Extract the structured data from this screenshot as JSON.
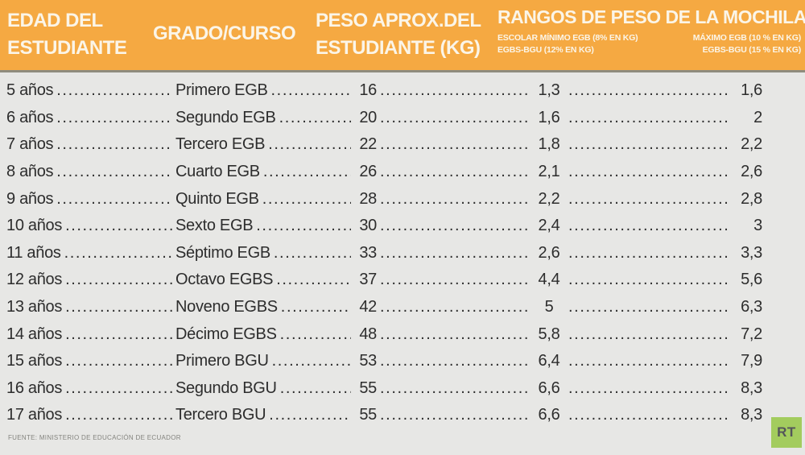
{
  "colors": {
    "header_bg": "#F5A942",
    "header_text": "#FBF5E8",
    "body_bg": "#E7E7E5",
    "row_text": "#2D2D2D",
    "header_shadow": "#8F8C7E",
    "footer_text": "#84847F",
    "logo_green": "#A3CC5E",
    "logo_text": "#54555A"
  },
  "header": {
    "col_age": {
      "line1": "EDAD DEL",
      "line2": "ESTUDIANTE"
    },
    "col_grade": {
      "label": "GRADO/CURSO"
    },
    "col_weight": {
      "line1": "PESO APROX.DEL",
      "line2": "ESTUDIANTE (KG)"
    },
    "col_range": {
      "title": "RANGOS DE PESO DE LA MOCHILA",
      "sub_min": {
        "line1": "ESCOLAR MÍNIMO EGB (8% EN KG)",
        "line2": "EGBS-BGU (12% EN KG)"
      },
      "sub_max": {
        "line1": "MÁXIMO EGB (10 % EN KG)",
        "line2": "EGBS-BGU (15 % EN KG)"
      }
    }
  },
  "rows": [
    {
      "age": "5 años",
      "grade": "Primero EGB",
      "weight": "16",
      "min": "1,3",
      "max": "1,6"
    },
    {
      "age": "6 años",
      "grade": "Segundo EGB",
      "weight": "20",
      "min": "1,6",
      "max": "2"
    },
    {
      "age": "7 años",
      "grade": "Tercero EGB",
      "weight": "22",
      "min": "1,8",
      "max": "2,2"
    },
    {
      "age": "8 años",
      "grade": "Cuarto EGB",
      "weight": "26",
      "min": "2,1",
      "max": "2,6"
    },
    {
      "age": "9 años",
      "grade": "Quinto EGB",
      "weight": "28",
      "min": "2,2",
      "max": "2,8"
    },
    {
      "age": "10 años",
      "grade": "Sexto EGB",
      "weight": "30",
      "min": "2,4",
      "max": "3"
    },
    {
      "age": "11 años",
      "grade": "Séptimo EGB",
      "weight": "33",
      "min": "2,6",
      "max": "3,3"
    },
    {
      "age": "12 años",
      "grade": "Octavo EGBS",
      "weight": "37",
      "min": "4,4",
      "max": "5,6"
    },
    {
      "age": "13 años",
      "grade": "Noveno EGBS",
      "weight": "42",
      "min": "5",
      "max": "6,3"
    },
    {
      "age": "14 años",
      "grade": "Décimo EGBS",
      "weight": "48",
      "min": "5,8",
      "max": "7,2"
    },
    {
      "age": "15 años",
      "grade": "Primero BGU",
      "weight": "53",
      "min": "6,4",
      "max": "7,9"
    },
    {
      "age": "16 años",
      "grade": "Segundo BGU",
      "weight": "55",
      "min": "6,6",
      "max": "8,3"
    },
    {
      "age": "17 años",
      "grade": "Tercero BGU",
      "weight": "55",
      "min": "6,6",
      "max": "8,3"
    }
  ],
  "footer": {
    "source": "FUENTE: MINISTERIO DE EDUCACIÓN DE ECUADOR"
  },
  "logo": {
    "text": "RT"
  },
  "chart_data": {
    "type": "table",
    "title": "RANGOS DE PESO DE LA MOCHILA",
    "columns": [
      "EDAD DEL ESTUDIANTE",
      "GRADO/CURSO",
      "PESO APROX.DEL ESTUDIANTE (KG)",
      "MOCHILA ESCOLAR MÍNIMO EGB (8% EN KG) EGBS-BGU (12% EN KG)",
      "MOCHILA MÁXIMO EGB (10 % EN KG) EGBS-BGU (15 % EN KG)"
    ],
    "rows": [
      [
        "5 años",
        "Primero EGB",
        16,
        1.3,
        1.6
      ],
      [
        "6 años",
        "Segundo EGB",
        20,
        1.6,
        2.0
      ],
      [
        "7 años",
        "Tercero EGB",
        22,
        1.8,
        2.2
      ],
      [
        "8 años",
        "Cuarto EGB",
        26,
        2.1,
        2.6
      ],
      [
        "9 años",
        "Quinto EGB",
        28,
        2.2,
        2.8
      ],
      [
        "10 años",
        "Sexto EGB",
        30,
        2.4,
        3.0
      ],
      [
        "11 años",
        "Séptimo EGB",
        33,
        2.6,
        3.3
      ],
      [
        "12 años",
        "Octavo EGBS",
        37,
        4.4,
        5.6
      ],
      [
        "13 años",
        "Noveno EGBS",
        42,
        5.0,
        6.3
      ],
      [
        "14 años",
        "Décimo EGBS",
        48,
        5.8,
        7.2
      ],
      [
        "15 años",
        "Primero BGU",
        53,
        6.4,
        7.9
      ],
      [
        "16 años",
        "Segundo BGU",
        55,
        6.6,
        8.3
      ],
      [
        "17 años",
        "Tercero BGU",
        55,
        6.6,
        8.3
      ]
    ],
    "footnote": "FUENTE: MINISTERIO DE EDUCACIÓN DE ECUADOR",
    "decimal_separator": ","
  }
}
